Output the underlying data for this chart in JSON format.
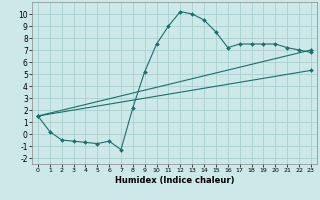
{
  "xlabel": "Humidex (Indice chaleur)",
  "bg_color": "#cce8e8",
  "grid_color": "#aacfcf",
  "line_color": "#1a6e6e",
  "xlim": [
    -0.5,
    23.5
  ],
  "ylim": [
    -2.5,
    11.0
  ],
  "xticks": [
    0,
    1,
    2,
    3,
    4,
    5,
    6,
    7,
    8,
    9,
    10,
    11,
    12,
    13,
    14,
    15,
    16,
    17,
    18,
    19,
    20,
    21,
    22,
    23
  ],
  "yticks": [
    -2,
    -1,
    0,
    1,
    2,
    3,
    4,
    5,
    6,
    7,
    8,
    9,
    10
  ],
  "curve1_x": [
    0,
    1,
    2,
    3,
    4,
    5,
    6,
    7,
    8,
    9,
    10,
    11,
    12,
    13,
    14,
    15,
    16,
    17,
    18,
    19,
    20,
    21,
    22,
    23
  ],
  "curve1_y": [
    1.5,
    0.2,
    -0.5,
    -0.6,
    -0.7,
    -0.8,
    -0.6,
    -1.3,
    2.2,
    5.2,
    7.5,
    9.0,
    10.2,
    10.0,
    9.5,
    8.5,
    7.2,
    7.5,
    7.5,
    7.5,
    7.5,
    7.2,
    7.0,
    6.8
  ],
  "curve2_x": [
    0,
    23
  ],
  "curve2_y": [
    1.5,
    7.0
  ],
  "curve3_x": [
    0,
    23
  ],
  "curve3_y": [
    1.5,
    5.3
  ]
}
